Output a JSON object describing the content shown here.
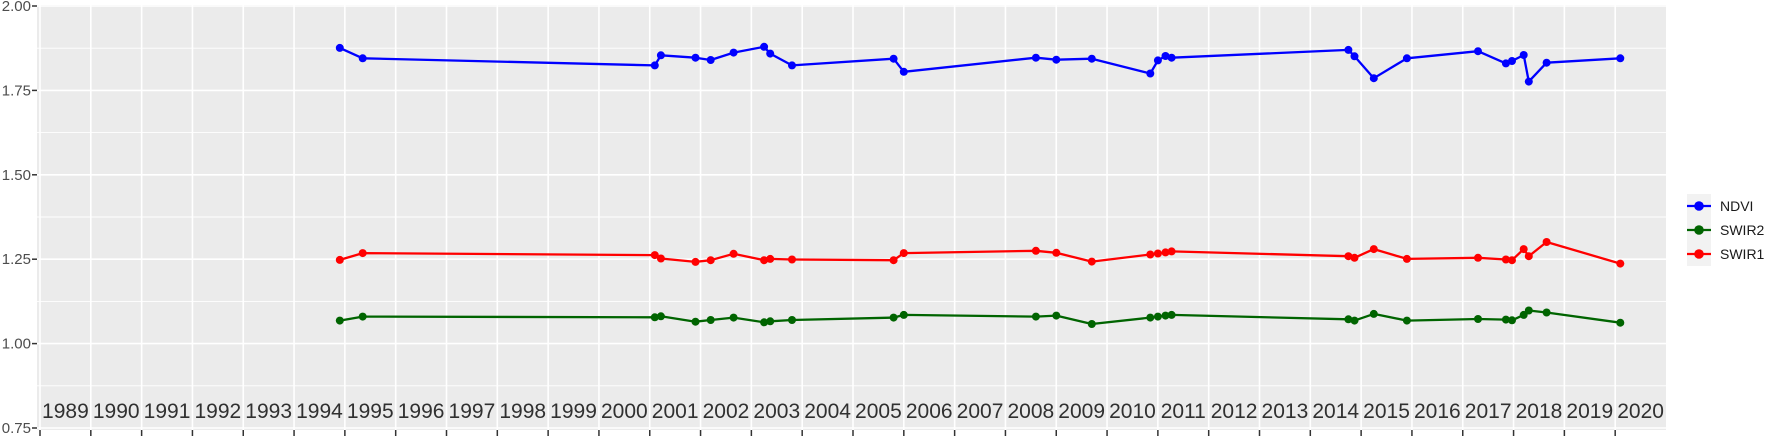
{
  "chart_data": {
    "type": "line",
    "title": "",
    "xlabel": "",
    "ylabel": "",
    "grid": true,
    "legend_position": "right",
    "panel_background": "#EBEBEB",
    "gridline_color": "#FFFFFF",
    "x_axis": {
      "labels": [
        "1989",
        "1990",
        "1991",
        "1992",
        "1993",
        "1994",
        "1995",
        "1996",
        "1997",
        "1998",
        "1999",
        "2000",
        "2001",
        "2002",
        "2003",
        "2004",
        "2005",
        "2006",
        "2007",
        "2008",
        "2009",
        "2010",
        "2011",
        "2012",
        "2013",
        "2014",
        "2015",
        "2016",
        "2017",
        "2018",
        "2019",
        "2020"
      ],
      "range_decimal_years": [
        1988.94,
        2021.0
      ],
      "gridlines_at": "year boundaries"
    },
    "y_axis": {
      "labels": [
        "2.00",
        "1.75",
        "1.50",
        "1.25",
        "1.00",
        "0.75"
      ],
      "values": [
        2.0,
        1.75,
        1.5,
        1.25,
        1.0,
        0.75
      ],
      "minor_values": [
        1.875,
        1.625,
        1.375,
        1.125,
        0.875
      ],
      "range": [
        0.74,
        2.01
      ]
    },
    "x": [
      1994.9,
      1995.35,
      2001.1,
      2001.22,
      2001.9,
      2002.2,
      2002.65,
      2003.25,
      2003.37,
      2003.8,
      2005.8,
      2006.0,
      2008.6,
      2009.0,
      2009.7,
      2010.85,
      2011.0,
      2011.15,
      2011.27,
      2014.75,
      2014.87,
      2015.25,
      2015.9,
      2017.3,
      2017.85,
      2017.97,
      2018.2,
      2018.3,
      2018.65,
      2020.1
    ],
    "series": [
      {
        "name": "NDVI",
        "color": "#0000FF",
        "values": [
          1.876,
          1.845,
          1.824,
          1.854,
          1.847,
          1.84,
          1.862,
          1.879,
          1.859,
          1.824,
          1.844,
          1.805,
          1.847,
          1.841,
          1.844,
          1.8,
          1.839,
          1.852,
          1.847,
          1.87,
          1.851,
          1.786,
          1.845,
          1.866,
          1.83,
          1.837,
          1.855,
          1.776,
          1.832,
          1.845
        ]
      },
      {
        "name": "SWIR2",
        "color": "#006400",
        "values": [
          1.068,
          1.08,
          1.078,
          1.081,
          1.065,
          1.07,
          1.077,
          1.063,
          1.066,
          1.07,
          1.077,
          1.085,
          1.08,
          1.083,
          1.058,
          1.077,
          1.08,
          1.083,
          1.085,
          1.072,
          1.068,
          1.088,
          1.068,
          1.073,
          1.071,
          1.069,
          1.085,
          1.098,
          1.092,
          1.062
        ]
      },
      {
        "name": "SWIR1",
        "color": "#FF0000",
        "values": [
          1.248,
          1.268,
          1.262,
          1.252,
          1.242,
          1.247,
          1.266,
          1.247,
          1.251,
          1.249,
          1.247,
          1.268,
          1.275,
          1.269,
          1.243,
          1.264,
          1.267,
          1.27,
          1.273,
          1.259,
          1.254,
          1.28,
          1.251,
          1.254,
          1.249,
          1.247,
          1.28,
          1.259,
          1.301,
          1.237
        ]
      }
    ],
    "legend": [
      {
        "label": "NDVI",
        "color": "#0000FF"
      },
      {
        "label": "SWIR2",
        "color": "#006400"
      },
      {
        "label": "SWIR1",
        "color": "#FF0000"
      }
    ]
  },
  "colors": {
    "panel": "#EBEBEB",
    "grid": "#FFFFFF",
    "legend_key_bg": "#F2F2F2",
    "tick": "#333333",
    "y_label_text": "#4D4D4D",
    "x_label_text": "#303030"
  }
}
